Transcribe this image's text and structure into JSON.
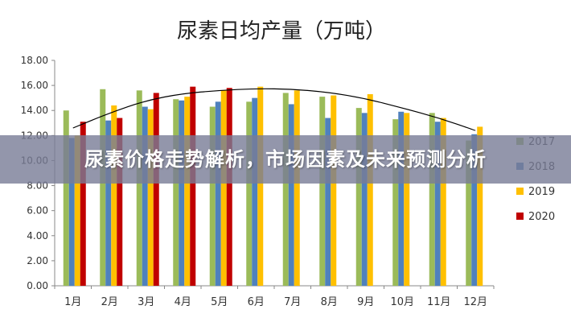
{
  "banner": {
    "text": "尿素价格走势解析，市场因素及未来预测分析"
  },
  "chart_data": {
    "type": "bar",
    "title": "尿素日均产量（万吨）",
    "categories": [
      "1月",
      "2月",
      "3月",
      "4月",
      "5月",
      "6月",
      "7月",
      "8月",
      "9月",
      "10月",
      "11月",
      "12月"
    ],
    "ylim": [
      0,
      18
    ],
    "yticks": [
      "0.00",
      "2.00",
      "4.00",
      "6.00",
      "8.00",
      "10.00",
      "12.00",
      "14.00",
      "16.00",
      "18.00"
    ],
    "grid": false,
    "legend_position": "right",
    "series": [
      {
        "name": "2017",
        "color": "#9BBB59",
        "values": [
          14.0,
          15.7,
          15.6,
          14.9,
          14.3,
          14.7,
          15.4,
          15.1,
          14.2,
          13.3,
          13.8,
          11.6
        ]
      },
      {
        "name": "2018",
        "color": "#4F81BD",
        "values": [
          11.8,
          13.2,
          14.3,
          14.8,
          14.7,
          15.0,
          14.5,
          13.4,
          13.8,
          13.9,
          13.1,
          12.1
        ]
      },
      {
        "name": "2019",
        "color": "#FFC000",
        "values": [
          12.0,
          14.4,
          14.1,
          15.1,
          15.6,
          15.9,
          15.6,
          15.2,
          15.3,
          13.8,
          13.4,
          12.7
        ]
      },
      {
        "name": "2020",
        "color": "#C00000",
        "values": [
          13.1,
          13.4,
          15.4,
          15.9,
          15.8,
          null,
          null,
          null,
          null,
          null,
          null,
          null
        ]
      }
    ],
    "trendline": {
      "color": "#000000",
      "values": [
        12.6,
        13.8,
        14.8,
        15.35,
        15.6,
        15.75,
        15.7,
        15.45,
        14.95,
        14.2,
        13.4,
        12.4
      ]
    }
  }
}
